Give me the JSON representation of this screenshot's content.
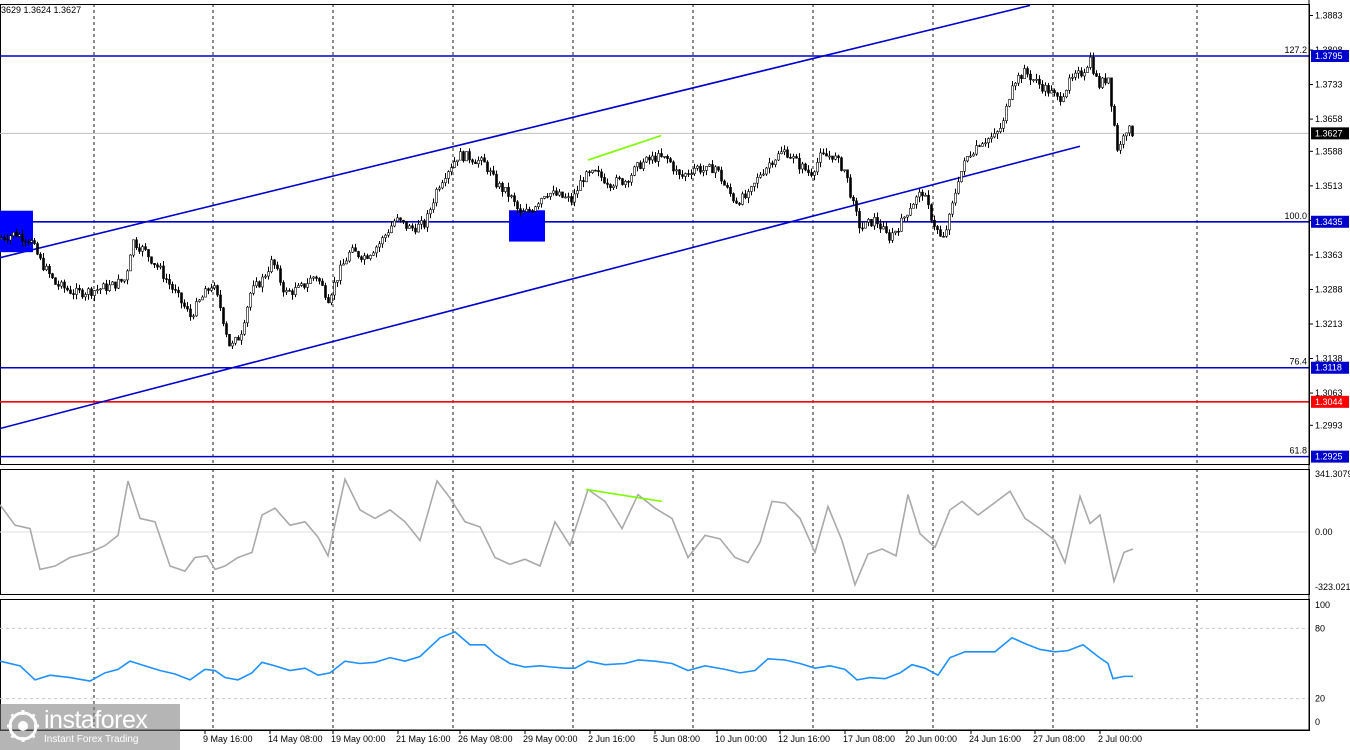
{
  "header": {
    "ohlc_text": "3629 1.3624 1.3627"
  },
  "colors": {
    "candle": "#000000",
    "channel": "#0000cc",
    "level": "#0000cc",
    "red_level": "#ff0000",
    "divergence": "#7cfc00",
    "cci": "#a9a9a9",
    "rsi": "#1e90ff",
    "box": "#0000ff"
  },
  "chart_data": [
    {
      "type": "candlestick",
      "symbol_panel": "price",
      "yaxis_ticks": [
        "1.3883",
        "1.3808",
        "1.3733",
        "1.3658",
        "1.3588",
        "1.3513",
        "1.3438",
        "1.3363",
        "1.3288",
        "1.3213",
        "1.3138",
        "1.3063",
        "1.2993"
      ],
      "ylim": [
        1.2905,
        1.3925
      ],
      "current_price": "1.3627",
      "price_levels": [
        {
          "fib": "127.2",
          "value": "1.3795",
          "color": "#0000cc"
        },
        {
          "fib": "100.0",
          "value": "1.3435",
          "color": "#0000cc"
        },
        {
          "fib": "76.4",
          "value": "1.3118",
          "color": "#0000cc"
        },
        {
          "fib": "",
          "value": "1.3044",
          "color": "#ff0000"
        },
        {
          "fib": "61.8",
          "value": "1.2925",
          "color": "#0000cc"
        }
      ],
      "channel_upper": {
        "x": [
          0,
          1030
        ],
        "y": [
          1.3357,
          1.3905
        ]
      },
      "channel_lower": {
        "x": [
          0,
          1080
        ],
        "y": [
          1.2986,
          1.3599
        ]
      },
      "divergence_line": {
        "x": [
          588,
          661
        ],
        "y": [
          1.3569,
          1.3622
        ]
      },
      "markers": [
        {
          "name": "left-box",
          "x_range": [
            0,
            33
          ],
          "y_range": [
            1.3369,
            1.3459
          ]
        },
        {
          "name": "center-box",
          "x_range": [
            509,
            545
          ],
          "y_range": [
            1.3392,
            1.346
          ]
        }
      ],
      "close_path": [
        [
          0,
          1.34
        ],
        [
          15,
          1.341
        ],
        [
          30,
          1.3395
        ],
        [
          40,
          1.335
        ],
        [
          55,
          1.33
        ],
        [
          75,
          1.328
        ],
        [
          90,
          1.3285
        ],
        [
          110,
          1.3295
        ],
        [
          125,
          1.331
        ],
        [
          132,
          1.3395
        ],
        [
          145,
          1.337
        ],
        [
          160,
          1.333
        ],
        [
          175,
          1.328
        ],
        [
          190,
          1.323
        ],
        [
          200,
          1.3265
        ],
        [
          212,
          1.33
        ],
        [
          220,
          1.325
        ],
        [
          230,
          1.316
        ],
        [
          240,
          1.319
        ],
        [
          250,
          1.328
        ],
        [
          262,
          1.331
        ],
        [
          272,
          1.335
        ],
        [
          285,
          1.328
        ],
        [
          300,
          1.329
        ],
        [
          315,
          1.332
        ],
        [
          328,
          1.327
        ],
        [
          340,
          1.333
        ],
        [
          350,
          1.337
        ],
        [
          365,
          1.336
        ],
        [
          380,
          1.339
        ],
        [
          395,
          1.344
        ],
        [
          410,
          1.342
        ],
        [
          425,
          1.343
        ],
        [
          437,
          1.351
        ],
        [
          445,
          1.354
        ],
        [
          458,
          1.358
        ],
        [
          470,
          1.3575
        ],
        [
          485,
          1.356
        ],
        [
          495,
          1.352
        ],
        [
          510,
          1.349
        ],
        [
          520,
          1.345
        ],
        [
          530,
          1.346
        ],
        [
          545,
          1.35
        ],
        [
          560,
          1.349
        ],
        [
          572,
          1.348
        ],
        [
          582,
          1.353
        ],
        [
          595,
          1.354
        ],
        [
          610,
          1.352
        ],
        [
          625,
          1.3525
        ],
        [
          640,
          1.356
        ],
        [
          655,
          1.3575
        ],
        [
          668,
          1.357
        ],
        [
          680,
          1.353
        ],
        [
          695,
          1.3555
        ],
        [
          705,
          1.3545
        ],
        [
          715,
          1.3555
        ],
        [
          725,
          1.351
        ],
        [
          735,
          1.348
        ],
        [
          748,
          1.349
        ],
        [
          760,
          1.354
        ],
        [
          772,
          1.357
        ],
        [
          785,
          1.359
        ],
        [
          798,
          1.356
        ],
        [
          810,
          1.354
        ],
        [
          820,
          1.3575
        ],
        [
          832,
          1.358
        ],
        [
          845,
          1.3545
        ],
        [
          853,
          1.347
        ],
        [
          860,
          1.342
        ],
        [
          875,
          1.344
        ],
        [
          888,
          1.34
        ],
        [
          900,
          1.343
        ],
        [
          910,
          1.347
        ],
        [
          922,
          1.35
        ],
        [
          932,
          1.344
        ],
        [
          942,
          1.339
        ],
        [
          950,
          1.345
        ],
        [
          958,
          1.353
        ],
        [
          968,
          1.358
        ],
        [
          980,
          1.361
        ],
        [
          995,
          1.362
        ],
        [
          1003,
          1.365
        ],
        [
          1012,
          1.374
        ],
        [
          1025,
          1.376
        ],
        [
          1035,
          1.374
        ],
        [
          1048,
          1.372
        ],
        [
          1058,
          1.37
        ],
        [
          1070,
          1.374
        ],
        [
          1082,
          1.376
        ],
        [
          1090,
          1.379
        ],
        [
          1098,
          1.373
        ],
        [
          1108,
          1.375
        ],
        [
          1113,
          1.366
        ],
        [
          1118,
          1.358
        ],
        [
          1124,
          1.364
        ],
        [
          1133,
          1.3627
        ]
      ],
      "xaxis_ticks": [
        "9 May 16:00",
        "14 May 08:00",
        "19 May 00:00",
        "21 May 16:00",
        "26 May 08:00",
        "29 May 00:00",
        "2 Jun 16:00",
        "5 Jun 08:00",
        "10 Jun 00:00",
        "12 Jun 16:00",
        "17 Jun 08:00",
        "20 Jun 00:00",
        "24 Jun 16:00",
        "27 Jun 08:00",
        "2 Jul 00:00"
      ]
    },
    {
      "type": "line",
      "symbol_panel": "cci",
      "yaxis_ticks": [
        "341.3079",
        "0.00",
        "-323.0213"
      ],
      "series": [
        {
          "values": [
            [
              0,
              160
            ],
            [
              15,
              40
            ],
            [
              30,
              20
            ],
            [
              40,
              -220
            ],
            [
              55,
              -200
            ],
            [
              70,
              -150
            ],
            [
              90,
              -120
            ],
            [
              105,
              -80
            ],
            [
              118,
              -20
            ],
            [
              128,
              300
            ],
            [
              140,
              80
            ],
            [
              155,
              60
            ],
            [
              170,
              -200
            ],
            [
              185,
              -230
            ],
            [
              195,
              -150
            ],
            [
              207,
              -140
            ],
            [
              215,
              -220
            ],
            [
              225,
              -200
            ],
            [
              238,
              -150
            ],
            [
              252,
              -120
            ],
            [
              262,
              100
            ],
            [
              275,
              140
            ],
            [
              290,
              40
            ],
            [
              305,
              60
            ],
            [
              318,
              -30
            ],
            [
              328,
              -140
            ],
            [
              345,
              310
            ],
            [
              360,
              130
            ],
            [
              375,
              80
            ],
            [
              390,
              130
            ],
            [
              405,
              60
            ],
            [
              420,
              -50
            ],
            [
              437,
              300
            ],
            [
              450,
              200
            ],
            [
              465,
              60
            ],
            [
              480,
              30
            ],
            [
              495,
              -150
            ],
            [
              510,
              -190
            ],
            [
              525,
              -160
            ],
            [
              540,
              -200
            ],
            [
              555,
              60
            ],
            [
              570,
              -80
            ],
            [
              588,
              250
            ],
            [
              605,
              180
            ],
            [
              622,
              20
            ],
            [
              638,
              220
            ],
            [
              655,
              140
            ],
            [
              672,
              80
            ],
            [
              688,
              -150
            ],
            [
              705,
              -20
            ],
            [
              720,
              -40
            ],
            [
              735,
              -150
            ],
            [
              748,
              -180
            ],
            [
              760,
              -60
            ],
            [
              772,
              180
            ],
            [
              785,
              170
            ],
            [
              800,
              80
            ],
            [
              815,
              -120
            ],
            [
              828,
              150
            ],
            [
              842,
              -50
            ],
            [
              855,
              -310
            ],
            [
              868,
              -130
            ],
            [
              882,
              -100
            ],
            [
              896,
              -140
            ],
            [
              908,
              220
            ],
            [
              920,
              -10
            ],
            [
              935,
              -90
            ],
            [
              950,
              130
            ],
            [
              962,
              180
            ],
            [
              978,
              100
            ],
            [
              992,
              160
            ],
            [
              1010,
              240
            ],
            [
              1025,
              80
            ],
            [
              1040,
              20
            ],
            [
              1055,
              -50
            ],
            [
              1065,
              -180
            ],
            [
              1080,
              210
            ],
            [
              1090,
              50
            ],
            [
              1100,
              100
            ],
            [
              1107,
              -90
            ],
            [
              1114,
              -290
            ],
            [
              1124,
              -120
            ],
            [
              1133,
              -100
            ]
          ]
        }
      ]
    },
    {
      "type": "line",
      "symbol_panel": "rsi",
      "yaxis_ticks": [
        "100",
        "80",
        "20",
        "0"
      ],
      "hlines": [
        80,
        20
      ],
      "series": [
        {
          "values": [
            [
              0,
              52
            ],
            [
              20,
              48
            ],
            [
              35,
              36
            ],
            [
              50,
              40
            ],
            [
              70,
              38
            ],
            [
              90,
              35
            ],
            [
              105,
              42
            ],
            [
              118,
              45
            ],
            [
              130,
              52
            ],
            [
              145,
              48
            ],
            [
              160,
              44
            ],
            [
              175,
              41
            ],
            [
              190,
              36
            ],
            [
              205,
              45
            ],
            [
              215,
              44
            ],
            [
              225,
              38
            ],
            [
              238,
              36
            ],
            [
              252,
              42
            ],
            [
              262,
              51
            ],
            [
              275,
              48
            ],
            [
              290,
              44
            ],
            [
              305,
              46
            ],
            [
              318,
              40
            ],
            [
              330,
              42
            ],
            [
              345,
              52
            ],
            [
              360,
              50
            ],
            [
              375,
              51
            ],
            [
              390,
              55
            ],
            [
              405,
              52
            ],
            [
              420,
              56
            ],
            [
              440,
              72
            ],
            [
              455,
              77
            ],
            [
              470,
              66
            ],
            [
              485,
              66
            ],
            [
              495,
              58
            ],
            [
              510,
              50
            ],
            [
              525,
              47
            ],
            [
              540,
              48
            ],
            [
              552,
              47
            ],
            [
              565,
              46
            ],
            [
              575,
              46
            ],
            [
              588,
              52
            ],
            [
              605,
              49
            ],
            [
              625,
              50
            ],
            [
              638,
              53
            ],
            [
              655,
              52
            ],
            [
              672,
              50
            ],
            [
              688,
              44
            ],
            [
              705,
              48
            ],
            [
              725,
              45
            ],
            [
              740,
              42
            ],
            [
              755,
              44
            ],
            [
              768,
              54
            ],
            [
              785,
              53
            ],
            [
              800,
              50
            ],
            [
              815,
              46
            ],
            [
              830,
              48
            ],
            [
              845,
              45
            ],
            [
              857,
              36
            ],
            [
              870,
              38
            ],
            [
              885,
              37
            ],
            [
              900,
              42
            ],
            [
              912,
              49
            ],
            [
              925,
              46
            ],
            [
              938,
              40
            ],
            [
              950,
              55
            ],
            [
              965,
              60
            ],
            [
              980,
              60
            ],
            [
              995,
              60
            ],
            [
              1012,
              72
            ],
            [
              1025,
              67
            ],
            [
              1040,
              62
            ],
            [
              1055,
              60
            ],
            [
              1068,
              61
            ],
            [
              1083,
              66
            ],
            [
              1098,
              56
            ],
            [
              1108,
              50
            ],
            [
              1113,
              37
            ],
            [
              1124,
              39
            ],
            [
              1133,
              39
            ]
          ]
        }
      ]
    }
  ]
}
